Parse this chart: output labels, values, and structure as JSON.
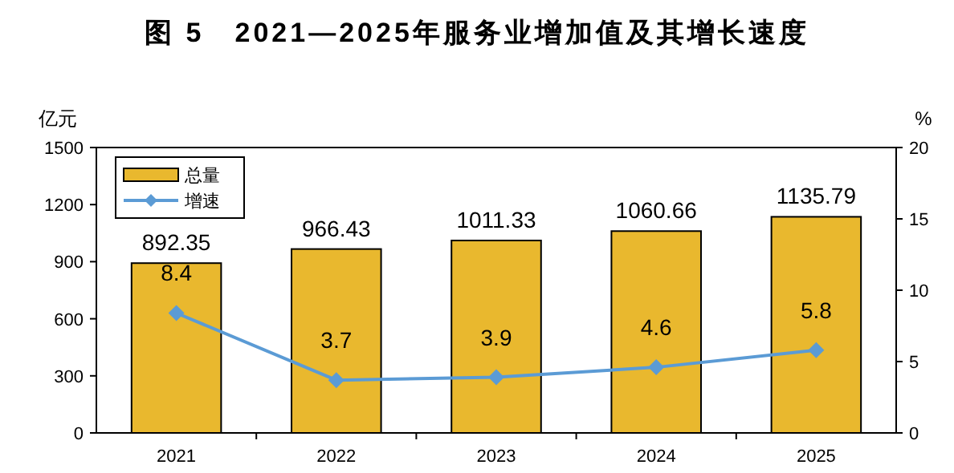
{
  "chart_data": {
    "type": "bar",
    "title": "图 5　2021—2025年服务业增加值及其增长速度",
    "ylabel": "亿元",
    "y2label": "%",
    "categories": [
      "2021",
      "2022",
      "2023",
      "2024",
      "2025"
    ],
    "ylim": [
      0,
      1500
    ],
    "yticks": [
      0,
      300,
      600,
      900,
      1200,
      1500
    ],
    "y2lim": [
      0,
      20
    ],
    "y2ticks": [
      0,
      5,
      10,
      15,
      20
    ],
    "series": [
      {
        "name": "总量",
        "color": "#e9b82e",
        "values": [
          892.35,
          966.43,
          1011.33,
          1060.66,
          1135.79
        ]
      },
      {
        "name": "增速",
        "type": "line",
        "axis": "y2",
        "color": "#5b9bd5",
        "values": [
          8.4,
          3.7,
          3.9,
          4.6,
          5.8
        ]
      }
    ],
    "marker": "diamond",
    "data_labels": true,
    "legend": "top left"
  }
}
